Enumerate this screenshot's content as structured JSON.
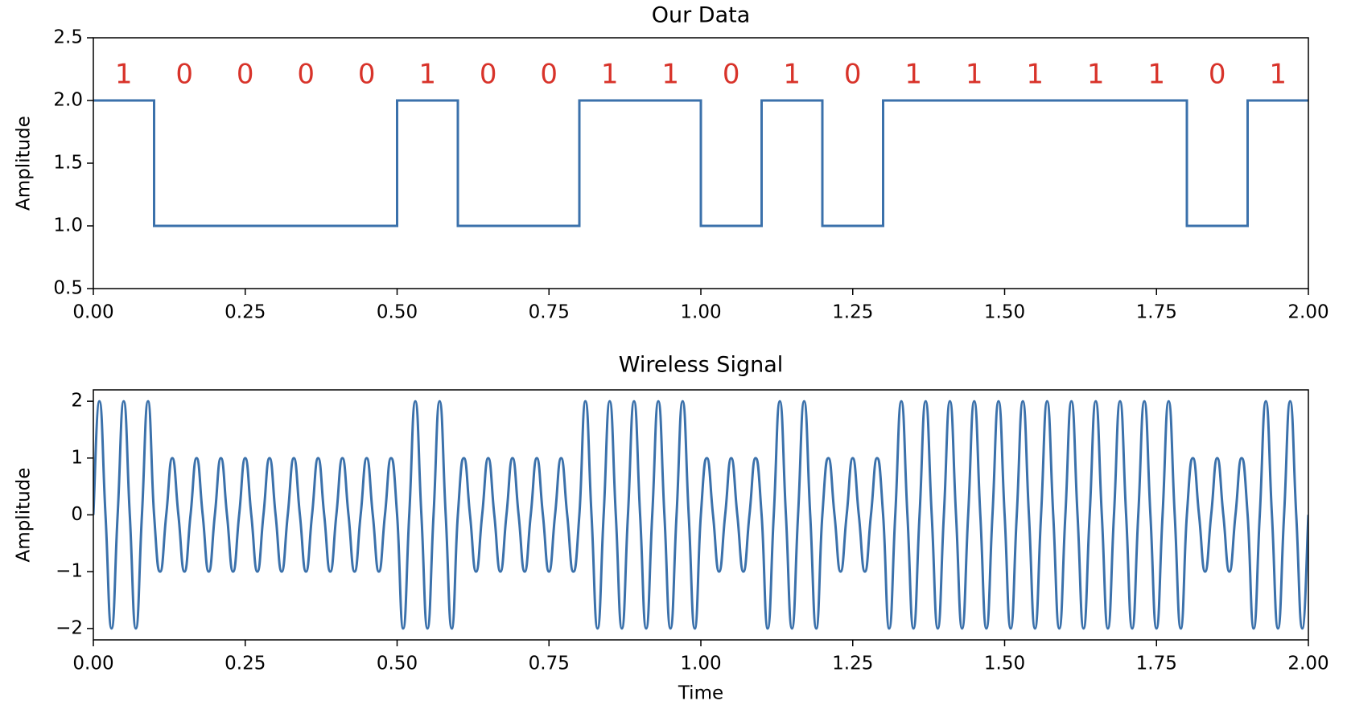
{
  "chart_data": [
    {
      "type": "step",
      "title": "Our Data",
      "ylabel": "Amplitude",
      "color": "#3b71ab",
      "x": [
        0,
        0.1,
        0.2,
        0.3,
        0.4,
        0.5,
        0.6,
        0.7,
        0.8,
        0.9,
        1,
        1.1,
        1.2,
        1.3,
        1.4,
        1.5,
        1.6,
        1.7,
        1.8,
        1.9,
        2
      ],
      "values": [
        2,
        1,
        1,
        1,
        1,
        2,
        1,
        1,
        2,
        2,
        1,
        2,
        1,
        2,
        2,
        2,
        2,
        2,
        1,
        2,
        2
      ],
      "xlim": [
        0,
        2
      ],
      "ylim": [
        0.5,
        2.5
      ],
      "xticks": [
        {
          "value": 0,
          "label": "0.00"
        },
        {
          "value": 0.25,
          "label": "0.25"
        },
        {
          "value": 0.5,
          "label": "0.50"
        },
        {
          "value": 0.75,
          "label": "0.75"
        },
        {
          "value": 1,
          "label": "1.00"
        },
        {
          "value": 1.25,
          "label": "1.25"
        },
        {
          "value": 1.5,
          "label": "1.50"
        },
        {
          "value": 1.75,
          "label": "1.75"
        },
        {
          "value": 2,
          "label": "2.00"
        }
      ],
      "yticks": [
        0.5,
        {
          "value": 1,
          "label": "1.0"
        },
        1.5,
        {
          "value": 2,
          "label": "2.0"
        },
        2.5
      ],
      "annotation_color": "#d8332a",
      "annotations": [
        {
          "text": "1",
          "x": 0.05,
          "y": 2.2
        },
        {
          "text": "0",
          "x": 0.15,
          "y": 2.2
        },
        {
          "text": "0",
          "x": 0.25,
          "y": 2.2
        },
        {
          "text": "0",
          "x": 0.35,
          "y": 2.2
        },
        {
          "text": "0",
          "x": 0.45,
          "y": 2.2
        },
        {
          "text": "1",
          "x": 0.55,
          "y": 2.2
        },
        {
          "text": "0",
          "x": 0.65,
          "y": 2.2
        },
        {
          "text": "0",
          "x": 0.75,
          "y": 2.2
        },
        {
          "text": "1",
          "x": 0.85,
          "y": 2.2
        },
        {
          "text": "1",
          "x": 0.95,
          "y": 2.2
        },
        {
          "text": "0",
          "x": 1.05,
          "y": 2.2
        },
        {
          "text": "1",
          "x": 1.15,
          "y": 2.2
        },
        {
          "text": "0",
          "x": 1.25,
          "y": 2.2
        },
        {
          "text": "1",
          "x": 1.35,
          "y": 2.2
        },
        {
          "text": "1",
          "x": 1.45,
          "y": 2.2
        },
        {
          "text": "1",
          "x": 1.55,
          "y": 2.2
        },
        {
          "text": "1",
          "x": 1.65,
          "y": 2.2
        },
        {
          "text": "1",
          "x": 1.75,
          "y": 2.2
        },
        {
          "text": "0",
          "x": 1.85,
          "y": 2.2
        },
        {
          "text": "1",
          "x": 1.95,
          "y": 2.2
        }
      ]
    },
    {
      "type": "line",
      "title": "Wireless Signal",
      "ylabel": "Amplitude",
      "xlabel": "Time",
      "color": "#3b71ab",
      "x": [
        0,
        0.01,
        0.02,
        0.03,
        0.04,
        0.05,
        0.06,
        0.07,
        0.08,
        0.09,
        0.1,
        0.11,
        0.12,
        0.13,
        0.14,
        0.15,
        0.16,
        0.17,
        0.18,
        0.19,
        0.2,
        0.21,
        0.22,
        0.23,
        0.24,
        0.25,
        0.26,
        0.27,
        0.28,
        0.29,
        0.3,
        0.31,
        0.32,
        0.33,
        0.34,
        0.35,
        0.36,
        0.37,
        0.38,
        0.39,
        0.4,
        0.41,
        0.42,
        0.43,
        0.44,
        0.45,
        0.46,
        0.47,
        0.48,
        0.49,
        0.5,
        0.51,
        0.52,
        0.53,
        0.54,
        0.55,
        0.56,
        0.57,
        0.58,
        0.59,
        0.6,
        0.61,
        0.62,
        0.63,
        0.64,
        0.65,
        0.66,
        0.67,
        0.68,
        0.69,
        0.7,
        0.71,
        0.72,
        0.73,
        0.74,
        0.75,
        0.76,
        0.77,
        0.78,
        0.79,
        0.8,
        0.81,
        0.82,
        0.83,
        0.84,
        0.85,
        0.86,
        0.87,
        0.88,
        0.89,
        0.9,
        0.91,
        0.92,
        0.93,
        0.94,
        0.95,
        0.96,
        0.97,
        0.98,
        0.99,
        1,
        1.01,
        1.02,
        1.03,
        1.04,
        1.05,
        1.06,
        1.07,
        1.08,
        1.09,
        1.1,
        1.11,
        1.12,
        1.13,
        1.14,
        1.15,
        1.16,
        1.17,
        1.18,
        1.19,
        1.2,
        1.21,
        1.22,
        1.23,
        1.24,
        1.25,
        1.26,
        1.27,
        1.28,
        1.29,
        1.3,
        1.31,
        1.32,
        1.33,
        1.34,
        1.35,
        1.36,
        1.37,
        1.38,
        1.39,
        1.4,
        1.41,
        1.42,
        1.43,
        1.44,
        1.45,
        1.46,
        1.47,
        1.48,
        1.49,
        1.5,
        1.51,
        1.52,
        1.53,
        1.54,
        1.55,
        1.56,
        1.57,
        1.58,
        1.59,
        1.6,
        1.61,
        1.62,
        1.63,
        1.64,
        1.65,
        1.66,
        1.67,
        1.68,
        1.69,
        1.7,
        1.71,
        1.72,
        1.73,
        1.74,
        1.75,
        1.76,
        1.77,
        1.78,
        1.79,
        1.8,
        1.81,
        1.82,
        1.83,
        1.84,
        1.85,
        1.86,
        1.87,
        1.88,
        1.89,
        1.9,
        1.91,
        1.92,
        1.93,
        1.94,
        1.95,
        1.96,
        1.97,
        1.98,
        1.99,
        2
      ],
      "values": [
        0,
        2,
        0,
        -2,
        0,
        2,
        0,
        -2,
        0,
        2,
        0,
        -1,
        0,
        1,
        0,
        -1,
        0,
        1,
        0,
        -1,
        0,
        1,
        0,
        -1,
        0,
        1,
        0,
        -1,
        0,
        1,
        0,
        -1,
        0,
        1,
        0,
        -1,
        0,
        1,
        0,
        -1,
        0,
        1,
        0,
        -1,
        0,
        1,
        0,
        -1,
        0,
        1,
        0,
        -2,
        0,
        2,
        0,
        -2,
        0,
        2,
        0,
        -2,
        0,
        1,
        0,
        -1,
        0,
        1,
        0,
        -1,
        0,
        1,
        0,
        -1,
        0,
        1,
        0,
        -1,
        0,
        1,
        0,
        -1,
        0,
        2,
        0,
        -2,
        0,
        2,
        0,
        -2,
        0,
        2,
        0,
        -2,
        0,
        2,
        0,
        -2,
        0,
        2,
        0,
        -2,
        0,
        1,
        0,
        -1,
        0,
        1,
        0,
        -1,
        0,
        1,
        0,
        -2,
        0,
        2,
        0,
        -2,
        0,
        2,
        0,
        -2,
        0,
        1,
        0,
        -1,
        0,
        1,
        0,
        -1,
        0,
        1,
        0,
        -2,
        0,
        2,
        0,
        -2,
        0,
        2,
        0,
        -2,
        0,
        2,
        0,
        -2,
        0,
        2,
        0,
        -2,
        0,
        2,
        0,
        -2,
        0,
        2,
        0,
        -2,
        0,
        2,
        0,
        -2,
        0,
        2,
        0,
        -2,
        0,
        2,
        0,
        -2,
        0,
        2,
        0,
        -2,
        0,
        2,
        0,
        -2,
        0,
        2,
        0,
        -2,
        0,
        1,
        0,
        -1,
        0,
        1,
        0,
        -1,
        0,
        1,
        0,
        -2,
        0,
        2,
        0,
        -2,
        0,
        2,
        0,
        -2,
        0
      ],
      "xlim": [
        0,
        2
      ],
      "ylim": [
        -2.2,
        2.2
      ],
      "xticks": [
        {
          "value": 0,
          "label": "0.00"
        },
        {
          "value": 0.25,
          "label": "0.25"
        },
        {
          "value": 0.5,
          "label": "0.50"
        },
        {
          "value": 0.75,
          "label": "0.75"
        },
        {
          "value": 1,
          "label": "1.00"
        },
        {
          "value": 1.25,
          "label": "1.25"
        },
        {
          "value": 1.5,
          "label": "1.50"
        },
        {
          "value": 1.75,
          "label": "1.75"
        },
        {
          "value": 2,
          "label": "2.00"
        }
      ],
      "yticks": [
        {
          "value": -2,
          "label": "−2"
        },
        {
          "value": -1,
          "label": "−1"
        },
        0,
        1,
        2
      ]
    }
  ]
}
